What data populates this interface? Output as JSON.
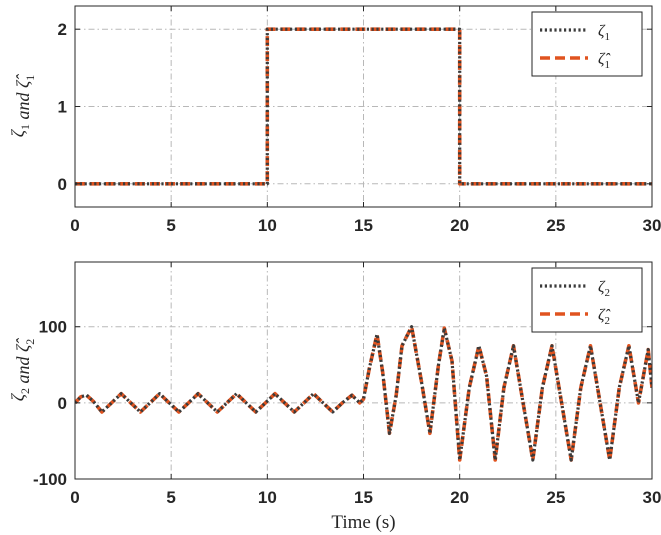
{
  "chart_data": [
    {
      "type": "line",
      "ylabel": "ζ1 and ζ̂1",
      "xlim": [
        0,
        30
      ],
      "ylim": [
        -0.3,
        2.3
      ],
      "xticks": [
        0,
        5,
        10,
        15,
        20,
        25,
        30
      ],
      "yticks": [
        0,
        1,
        2
      ],
      "grid": true,
      "legend_position": "top-right",
      "series": [
        {
          "name": "ζ1",
          "style": "dotted",
          "color": "#3b3b3b",
          "x": [
            0,
            10,
            10,
            20,
            20,
            30
          ],
          "y": [
            0,
            0,
            2,
            2,
            0,
            0
          ]
        },
        {
          "name": "ζ̂1",
          "style": "dashed",
          "color": "#e0531f",
          "x": [
            0,
            10,
            10,
            20,
            20,
            30
          ],
          "y": [
            0,
            0,
            2,
            2,
            0,
            0
          ]
        }
      ]
    },
    {
      "type": "line",
      "xlabel": "Time (s)",
      "ylabel": "ζ2 and ζ̂2",
      "xlim": [
        0,
        30
      ],
      "ylim": [
        -100,
        185
      ],
      "xticks": [
        0,
        5,
        10,
        15,
        20,
        25,
        30
      ],
      "yticks": [
        -100,
        0,
        100
      ],
      "grid": true,
      "legend_position": "top-right",
      "series": [
        {
          "name": "ζ2",
          "style": "dotted",
          "color": "#3b3b3b",
          "x": [
            0,
            0.3,
            0.6,
            0.95,
            1.4,
            1.9,
            2.4,
            2.9,
            3.4,
            3.9,
            4.4,
            4.9,
            5.4,
            5.9,
            6.4,
            6.9,
            7.4,
            7.9,
            8.4,
            8.9,
            9.4,
            9.9,
            10.4,
            10.9,
            11.4,
            11.9,
            12.4,
            12.9,
            13.4,
            13.9,
            14.4,
            14.8,
            15.0,
            15.3,
            15.7,
            16.0,
            16.35,
            16.7,
            17.0,
            17.5,
            18.0,
            18.45,
            18.9,
            19.2,
            19.6,
            20.0,
            20.5,
            21.0,
            21.4,
            21.85,
            22.3,
            22.8,
            23.3,
            23.8,
            24.3,
            24.8,
            25.3,
            25.8,
            26.3,
            26.8,
            27.3,
            27.8,
            28.3,
            28.8,
            29.3,
            29.8,
            30.0
          ],
          "y": [
            0,
            8,
            10,
            2,
            -12,
            0,
            12,
            0,
            -12,
            0,
            12,
            0,
            -12,
            0,
            12,
            0,
            -12,
            0,
            12,
            0,
            -12,
            0,
            12,
            0,
            -12,
            0,
            12,
            0,
            -12,
            0,
            10,
            0,
            5,
            45,
            90,
            40,
            -40,
            10,
            75,
            100,
            30,
            -40,
            50,
            98,
            55,
            -75,
            20,
            75,
            35,
            -75,
            20,
            75,
            0,
            -75,
            20,
            75,
            0,
            -75,
            20,
            75,
            0,
            -75,
            20,
            75,
            0,
            70,
            20
          ]
        },
        {
          "name": "ζ̂2",
          "style": "dashed",
          "color": "#e0531f",
          "x": [
            0,
            0.3,
            0.6,
            0.95,
            1.4,
            1.9,
            2.4,
            2.9,
            3.4,
            3.9,
            4.4,
            4.9,
            5.4,
            5.9,
            6.4,
            6.9,
            7.4,
            7.9,
            8.4,
            8.9,
            9.4,
            9.9,
            10.4,
            10.9,
            11.4,
            11.9,
            12.4,
            12.9,
            13.4,
            13.9,
            14.4,
            14.8,
            15.0,
            15.3,
            15.7,
            16.0,
            16.35,
            16.7,
            17.0,
            17.5,
            18.0,
            18.45,
            18.9,
            19.2,
            19.6,
            20.0,
            20.5,
            21.0,
            21.4,
            21.85,
            22.3,
            22.8,
            23.3,
            23.8,
            24.3,
            24.8,
            25.3,
            25.8,
            26.3,
            26.8,
            27.3,
            27.8,
            28.3,
            28.8,
            29.3,
            29.8,
            30.0
          ],
          "y": [
            0,
            8,
            10,
            2,
            -12,
            0,
            12,
            0,
            -12,
            0,
            12,
            0,
            -12,
            0,
            12,
            0,
            -12,
            0,
            12,
            0,
            -12,
            0,
            12,
            0,
            -12,
            0,
            12,
            0,
            -12,
            0,
            10,
            0,
            5,
            45,
            90,
            40,
            -40,
            10,
            75,
            100,
            30,
            -40,
            50,
            98,
            55,
            -75,
            20,
            75,
            35,
            -75,
            20,
            75,
            0,
            -75,
            20,
            75,
            0,
            -75,
            20,
            75,
            0,
            -75,
            20,
            75,
            0,
            70,
            20
          ]
        }
      ]
    }
  ]
}
